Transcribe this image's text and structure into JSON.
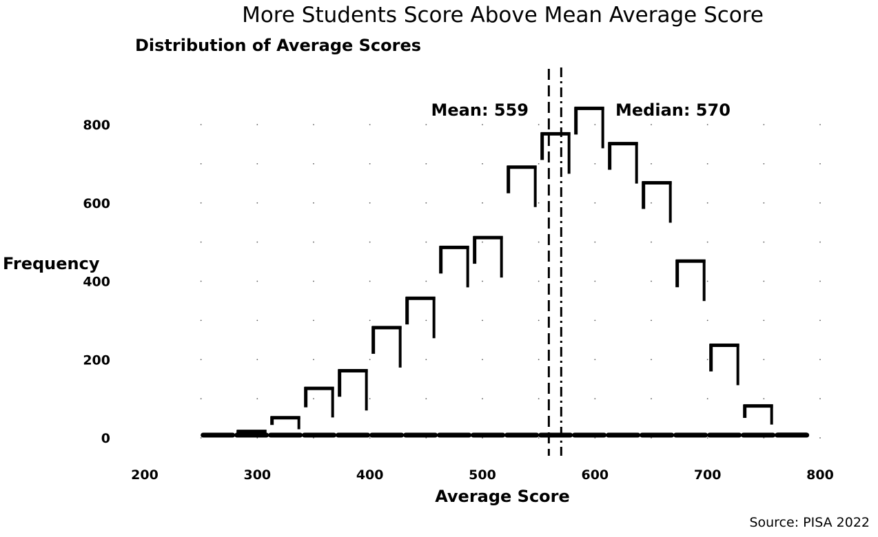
{
  "chart_data": {
    "type": "bar",
    "title": "More Students Score Above Mean Average Score",
    "subtitle": "Distribution of Average Scores",
    "xlabel": "Average Score",
    "ylabel": "Frequency",
    "source": "Source: PISA 2022",
    "xlim": [
      200,
      800
    ],
    "ylim": [
      0,
      900
    ],
    "x_ticks": [
      "200",
      "300",
      "400",
      "500",
      "600",
      "700",
      "800"
    ],
    "y_ticks": [
      "0",
      "200",
      "400",
      "600",
      "800"
    ],
    "bin_edges": [
      250,
      280,
      310,
      340,
      370,
      400,
      430,
      460,
      490,
      520,
      550,
      580,
      610,
      640,
      670,
      700,
      730,
      760,
      790
    ],
    "values": [
      2,
      20,
      55,
      130,
      175,
      285,
      360,
      490,
      515,
      695,
      780,
      845,
      755,
      655,
      455,
      240,
      85,
      10
    ],
    "mean": 559,
    "median": 570,
    "mean_label": "Mean: 559",
    "median_label": "Median: 570",
    "grid": true,
    "colors": {
      "bars": "#000000",
      "background": "#ffffff"
    }
  }
}
